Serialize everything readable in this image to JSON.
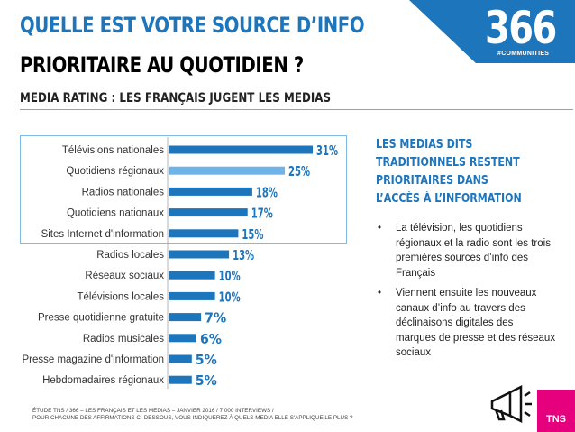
{
  "header": {
    "title_line1": "QUELLE EST VOTRE SOURCE D’INFO",
    "title_line2": "PRIORITAIRE AU QUOTIDIEN ?",
    "subtitle": "MEDIA RATING : LES FRANÇAIS JUGENT LES MEDIAS"
  },
  "logo": {
    "number": "366",
    "tagline": "#COMMUNITIES"
  },
  "chart_data": {
    "type": "bar",
    "orientation": "horizontal",
    "categories": [
      "Télévisions nationales",
      "Quotidiens régionaux",
      "Radios nationales",
      "Quotidiens nationaux",
      "Sites Internet d'information",
      "Radios locales",
      "Réseaux sociaux",
      "Télévisions locales",
      "Presse quotidienne gratuite",
      "Radios musicales",
      "Presse magazine d'information",
      "Hebdomadaires régionaux"
    ],
    "values": [
      31,
      25,
      18,
      17,
      15,
      13,
      10,
      10,
      7,
      6,
      5,
      5
    ],
    "labels": [
      "31%",
      "25%",
      "18%",
      "17%",
      "15%",
      "13%",
      "10%",
      "10%",
      "7%",
      "6%",
      "5%",
      "5%"
    ],
    "highlighted_index": 1,
    "xlim": [
      0,
      31
    ],
    "bar_color": "#1d75bc",
    "highlight_color": "#6fb4e8",
    "label_color": "#1d75bc",
    "grid": false
  },
  "side": {
    "heading_lines": [
      "LES MEDIAS DITS",
      "TRADITIONNELS RESTENT",
      "PRIORITAIRES DANS",
      "L’ACCÈS À L’INFORMATION"
    ],
    "bullets": [
      "La télévision, les quotidiens régionaux et la radio sont les trois premières sources d’info des Français",
      "Viennent ensuite les nouveaux canaux d’info au travers des déclinaisons digitales des marques de presse et des réseaux sociaux"
    ]
  },
  "footnote": {
    "line1": "ÉTUDE TNS / 366 – LES FRANÇAIS ET LES MEDIAS – JANVIER 2016 / 7 000 INTERVIEWS /",
    "line2": "POUR CHACUNE DES AFFIRMATIONS CI-DESSOUS, VOUS INDIQUEREZ À QUELS MEDIA ELLE S'APPLIQUE LE PLUS ?"
  },
  "brand": {
    "tns": "TNS",
    "tns_color": "#e6007e",
    "accent": "#1d75bc"
  }
}
